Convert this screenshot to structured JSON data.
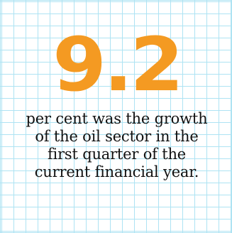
{
  "stat": {
    "value": "9.2",
    "description_lines": [
      "per cent was the growth",
      "of the oil sector in the",
      "first quarter of the",
      "current financial year."
    ]
  },
  "colors": {
    "accent": "#f49a22",
    "grid": "#aee3f3",
    "text": "#111111",
    "background": "#ffffff"
  }
}
